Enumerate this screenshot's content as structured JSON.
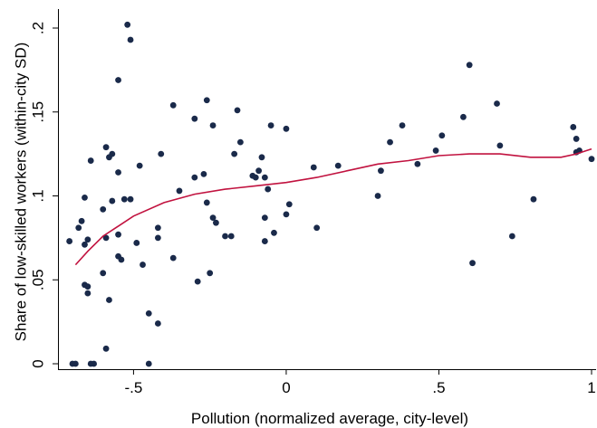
{
  "chart_data": {
    "type": "scatter",
    "xlabel": "Pollution (normalized average, city-level)",
    "ylabel": "Share of low-skilled workers (within-city SD)",
    "xlim": [
      -0.7,
      1.0
    ],
    "ylim": [
      0,
      0.2
    ],
    "x_ticks": [
      {
        "value": -0.5,
        "label": "-.5"
      },
      {
        "value": 0,
        "label": "0"
      },
      {
        "value": 0.5,
        "label": ".5"
      },
      {
        "value": 1,
        "label": "1"
      }
    ],
    "y_ticks": [
      {
        "value": 0,
        "label": "0"
      },
      {
        "value": 0.05,
        "label": ".05"
      },
      {
        "value": 0.1,
        "label": ".1"
      },
      {
        "value": 0.15,
        "label": ".15"
      },
      {
        "value": 0.2,
        "label": ".2"
      }
    ],
    "grid": false,
    "colors": {
      "points": "#1a2a4a",
      "fit_line": "#c1123f"
    },
    "series": [
      {
        "type": "scatter",
        "points": [
          {
            "x": -0.52,
            "y": 0.202
          },
          {
            "x": -0.51,
            "y": 0.193
          },
          {
            "x": -0.55,
            "y": 0.169
          },
          {
            "x": -0.37,
            "y": 0.154
          },
          {
            "x": -0.26,
            "y": 0.157
          },
          {
            "x": -0.16,
            "y": 0.151
          },
          {
            "x": -0.3,
            "y": 0.146
          },
          {
            "x": -0.24,
            "y": 0.142
          },
          {
            "x": -0.15,
            "y": 0.132
          },
          {
            "x": -0.05,
            "y": 0.142
          },
          {
            "x": 0.0,
            "y": 0.14
          },
          {
            "x": -0.17,
            "y": 0.125
          },
          {
            "x": -0.08,
            "y": 0.123
          },
          {
            "x": -0.41,
            "y": 0.125
          },
          {
            "x": -0.59,
            "y": 0.129
          },
          {
            "x": -0.58,
            "y": 0.123
          },
          {
            "x": -0.57,
            "y": 0.125
          },
          {
            "x": -0.64,
            "y": 0.121
          },
          {
            "x": -0.48,
            "y": 0.118
          },
          {
            "x": -0.55,
            "y": 0.114
          },
          {
            "x": -0.1,
            "y": 0.111
          },
          {
            "x": -0.11,
            "y": 0.112
          },
          {
            "x": -0.09,
            "y": 0.115
          },
          {
            "x": -0.07,
            "y": 0.111
          },
          {
            "x": -0.3,
            "y": 0.111
          },
          {
            "x": -0.27,
            "y": 0.113
          },
          {
            "x": -0.35,
            "y": 0.103
          },
          {
            "x": -0.06,
            "y": 0.104
          },
          {
            "x": -0.26,
            "y": 0.096
          },
          {
            "x": -0.66,
            "y": 0.099
          },
          {
            "x": -0.57,
            "y": 0.097
          },
          {
            "x": -0.53,
            "y": 0.098
          },
          {
            "x": -0.51,
            "y": 0.098
          },
          {
            "x": -0.6,
            "y": 0.092
          },
          {
            "x": -0.68,
            "y": 0.081
          },
          {
            "x": -0.67,
            "y": 0.085
          },
          {
            "x": -0.24,
            "y": 0.087
          },
          {
            "x": -0.23,
            "y": 0.084
          },
          {
            "x": -0.07,
            "y": 0.087
          },
          {
            "x": 0.01,
            "y": 0.095
          },
          {
            "x": 0.0,
            "y": 0.089
          },
          {
            "x": -0.2,
            "y": 0.076
          },
          {
            "x": -0.18,
            "y": 0.076
          },
          {
            "x": -0.04,
            "y": 0.078
          },
          {
            "x": -0.07,
            "y": 0.073
          },
          {
            "x": 0.1,
            "y": 0.081
          },
          {
            "x": -0.71,
            "y": 0.073
          },
          {
            "x": -0.66,
            "y": 0.071
          },
          {
            "x": -0.65,
            "y": 0.074
          },
          {
            "x": -0.59,
            "y": 0.075
          },
          {
            "x": -0.55,
            "y": 0.077
          },
          {
            "x": -0.49,
            "y": 0.072
          },
          {
            "x": -0.42,
            "y": 0.075
          },
          {
            "x": -0.42,
            "y": 0.081
          },
          {
            "x": -0.37,
            "y": 0.063
          },
          {
            "x": -0.55,
            "y": 0.064
          },
          {
            "x": -0.54,
            "y": 0.062
          },
          {
            "x": -0.47,
            "y": 0.059
          },
          {
            "x": -0.25,
            "y": 0.054
          },
          {
            "x": -0.29,
            "y": 0.049
          },
          {
            "x": -0.6,
            "y": 0.054
          },
          {
            "x": -0.66,
            "y": 0.047
          },
          {
            "x": -0.65,
            "y": 0.046
          },
          {
            "x": -0.65,
            "y": 0.042
          },
          {
            "x": -0.58,
            "y": 0.038
          },
          {
            "x": -0.45,
            "y": 0.03
          },
          {
            "x": -0.42,
            "y": 0.024
          },
          {
            "x": -0.59,
            "y": 0.009
          },
          {
            "x": -0.7,
            "y": 0.0
          },
          {
            "x": -0.69,
            "y": 0.0
          },
          {
            "x": -0.64,
            "y": 0.0
          },
          {
            "x": -0.63,
            "y": 0.0
          },
          {
            "x": -0.45,
            "y": 0.0
          },
          {
            "x": 0.09,
            "y": 0.117
          },
          {
            "x": 0.17,
            "y": 0.118
          },
          {
            "x": 0.3,
            "y": 0.1
          },
          {
            "x": 0.31,
            "y": 0.115
          },
          {
            "x": 0.34,
            "y": 0.132
          },
          {
            "x": 0.38,
            "y": 0.142
          },
          {
            "x": 0.43,
            "y": 0.119
          },
          {
            "x": 0.49,
            "y": 0.127
          },
          {
            "x": 0.51,
            "y": 0.136
          },
          {
            "x": 0.58,
            "y": 0.147
          },
          {
            "x": 0.6,
            "y": 0.178
          },
          {
            "x": 0.61,
            "y": 0.06
          },
          {
            "x": 0.69,
            "y": 0.155
          },
          {
            "x": 0.7,
            "y": 0.13
          },
          {
            "x": 0.74,
            "y": 0.076
          },
          {
            "x": 0.81,
            "y": 0.098
          },
          {
            "x": 0.94,
            "y": 0.141
          },
          {
            "x": 0.95,
            "y": 0.134
          },
          {
            "x": 0.95,
            "y": 0.126
          },
          {
            "x": 0.96,
            "y": 0.127
          },
          {
            "x": 1.0,
            "y": 0.122
          }
        ]
      },
      {
        "type": "line",
        "points": [
          {
            "x": -0.69,
            "y": 0.059
          },
          {
            "x": -0.65,
            "y": 0.067
          },
          {
            "x": -0.6,
            "y": 0.076
          },
          {
            "x": -0.55,
            "y": 0.082
          },
          {
            "x": -0.5,
            "y": 0.088
          },
          {
            "x": -0.4,
            "y": 0.096
          },
          {
            "x": -0.3,
            "y": 0.101
          },
          {
            "x": -0.2,
            "y": 0.104
          },
          {
            "x": -0.1,
            "y": 0.106
          },
          {
            "x": 0.0,
            "y": 0.108
          },
          {
            "x": 0.1,
            "y": 0.111
          },
          {
            "x": 0.2,
            "y": 0.115
          },
          {
            "x": 0.3,
            "y": 0.119
          },
          {
            "x": 0.4,
            "y": 0.121
          },
          {
            "x": 0.5,
            "y": 0.124
          },
          {
            "x": 0.6,
            "y": 0.125
          },
          {
            "x": 0.7,
            "y": 0.125
          },
          {
            "x": 0.8,
            "y": 0.123
          },
          {
            "x": 0.9,
            "y": 0.123
          },
          {
            "x": 0.95,
            "y": 0.125
          },
          {
            "x": 1.0,
            "y": 0.128
          }
        ]
      }
    ]
  }
}
